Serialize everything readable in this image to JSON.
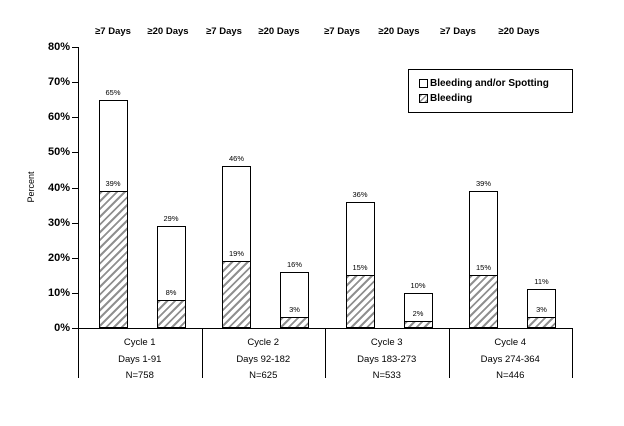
{
  "colors": {
    "background": "#ffffff",
    "bar_fill": "#ffffff",
    "bar_border": "#000000",
    "hatch_line": "#909090",
    "text": "#000000"
  },
  "chart_data": {
    "type": "bar",
    "subtype": "overlay-stacked-columns",
    "title": "",
    "xlabel": "",
    "ylabel": "Percent",
    "ylim": [
      0,
      80
    ],
    "ytick_step": 10,
    "yticks": [
      "0%",
      "10%",
      "20%",
      "30%",
      "40%",
      "50%",
      "60%",
      "70%",
      "80%"
    ],
    "grid": false,
    "legend_position": "top-right",
    "legend": [
      "Bleeding and/or Spotting",
      "Bleeding"
    ],
    "bar_headers": [
      "≥7 Days",
      "≥20 Days",
      "≥7 Days",
      "≥20 Days",
      "≥7 Days",
      "≥20 Days",
      "≥7 Days",
      "≥20 Days"
    ],
    "series": [
      {
        "name": "Bleeding and/or Spotting",
        "style": "white-outline",
        "values": [
          65,
          29,
          46,
          16,
          36,
          10,
          39,
          11
        ]
      },
      {
        "name": "Bleeding",
        "style": "gray-diagonal-hatch",
        "values": [
          39,
          8,
          19,
          3,
          15,
          2,
          15,
          3
        ]
      }
    ],
    "groups": [
      {
        "cycle": "Cycle 1",
        "days": "Days 1-91",
        "n": "N=758",
        "bars": [
          {
            "header": "≥7 Days",
            "bleeding_and_or_spotting": 65,
            "bleeding": 39
          },
          {
            "header": "≥20 Days",
            "bleeding_and_or_spotting": 29,
            "bleeding": 8
          }
        ]
      },
      {
        "cycle": "Cycle 2",
        "days": "Days 92-182",
        "n": "N=625",
        "bars": [
          {
            "header": "≥7 Days",
            "bleeding_and_or_spotting": 46,
            "bleeding": 19
          },
          {
            "header": "≥20 Days",
            "bleeding_and_or_spotting": 16,
            "bleeding": 3
          }
        ]
      },
      {
        "cycle": "Cycle 3",
        "days": "Days 183-273",
        "n": "N=533",
        "bars": [
          {
            "header": "≥7 Days",
            "bleeding_and_or_spotting": 36,
            "bleeding": 15
          },
          {
            "header": "≥20 Days",
            "bleeding_and_or_spotting": 10,
            "bleeding": 2
          }
        ]
      },
      {
        "cycle": "Cycle 4",
        "days": "Days 274-364",
        "n": "N=446",
        "bars": [
          {
            "header": "≥7 Days",
            "bleeding_and_or_spotting": 39,
            "bleeding": 15
          },
          {
            "header": "≥20 Days",
            "bleeding_and_or_spotting": 11,
            "bleeding": 3
          }
        ]
      }
    ]
  }
}
